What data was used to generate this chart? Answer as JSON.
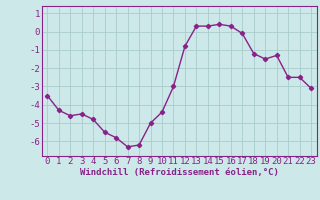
{
  "x": [
    0,
    1,
    2,
    3,
    4,
    5,
    6,
    7,
    8,
    9,
    10,
    11,
    12,
    13,
    14,
    15,
    16,
    17,
    18,
    19,
    20,
    21,
    22,
    23
  ],
  "y": [
    -3.5,
    -4.3,
    -4.6,
    -4.5,
    -4.8,
    -5.5,
    -5.8,
    -6.3,
    -6.2,
    -5.0,
    -4.4,
    -3.0,
    -0.8,
    0.3,
    0.3,
    0.4,
    0.3,
    -0.1,
    -1.2,
    -1.5,
    -1.3,
    -2.5,
    -2.5,
    -3.1
  ],
  "line_color": "#882288",
  "marker": "D",
  "marker_size": 2.2,
  "bg_color": "#cce8e8",
  "grid_color": "#aacccc",
  "xlabel": "Windchill (Refroidissement éolien,°C)",
  "xlabel_fontsize": 6.5,
  "ylabel_ticks": [
    1,
    0,
    -1,
    -2,
    -3,
    -4,
    -5,
    -6
  ],
  "ylim": [
    -6.8,
    1.4
  ],
  "xlim": [
    -0.5,
    23.5
  ],
  "tick_fontsize": 6.5,
  "line_width": 1.0
}
